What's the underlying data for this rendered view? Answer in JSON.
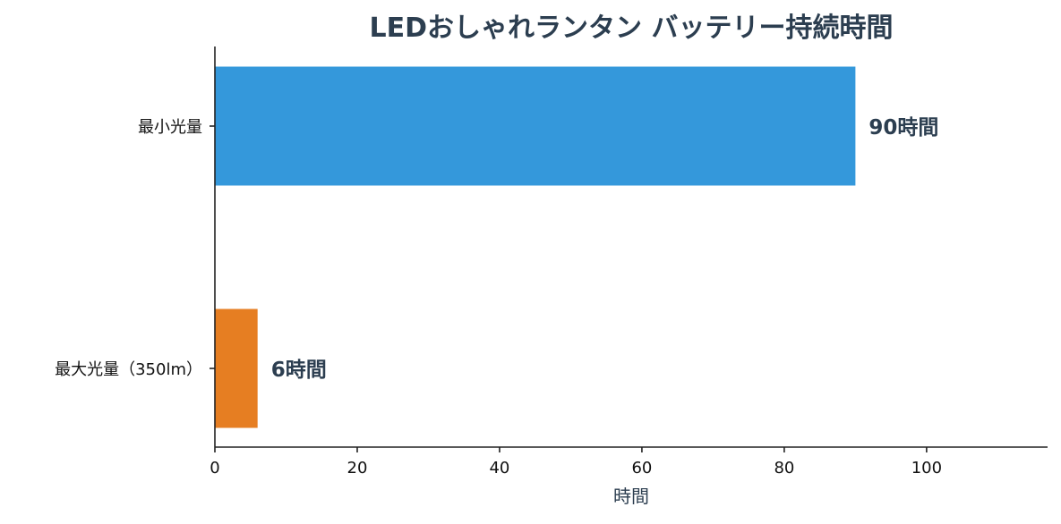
{
  "chart_data": {
    "type": "bar",
    "orientation": "horizontal",
    "title": "LEDおしゃれランタン バッテリー持続時間",
    "xlabel": "時間",
    "ylabel": "",
    "categories": [
      "最小光量",
      "最大光量（350lm）"
    ],
    "values": [
      90,
      6
    ],
    "data_labels": [
      "90時間",
      "6時間"
    ],
    "colors": [
      "#3498db",
      "#e67e22"
    ],
    "xlim": [
      0,
      117
    ],
    "xticks": [
      0,
      20,
      40,
      60,
      80,
      100
    ],
    "xtick_labels": [
      "0",
      "20",
      "40",
      "60",
      "80",
      "100"
    ],
    "grid": false,
    "title_color": "#2c3e50",
    "label_color": "#2c3e50"
  }
}
